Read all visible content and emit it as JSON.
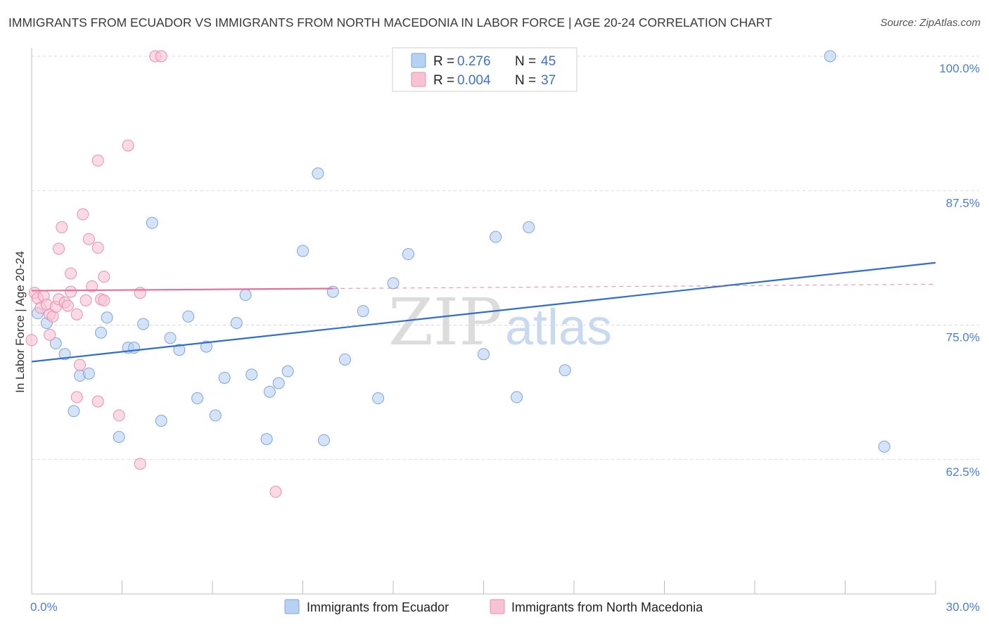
{
  "title": "IMMIGRANTS FROM ECUADOR VS IMMIGRANTS FROM NORTH MACEDONIA IN LABOR FORCE | AGE 20-24 CORRELATION CHART",
  "source": "Source: ZipAtlas.com",
  "watermark": {
    "zip": "ZIP",
    "atlas": "atlas"
  },
  "legend": {
    "rows": [
      {
        "r_label": "R =",
        "r_value": "0.276",
        "n_label": "N =",
        "n_value": "45"
      },
      {
        "r_label": "R =",
        "r_value": "0.004",
        "n_label": "N =",
        "n_value": "37"
      }
    ]
  },
  "bottom_legend": [
    "Immigrants from Ecuador",
    "Immigrants from North Macedonia"
  ],
  "colors": {
    "blue_fill": "#b7d1f2",
    "blue_stroke": "#7aa6e0",
    "blue_line": "#2f6ecb",
    "pink_fill": "#f7c3d3",
    "pink_stroke": "#e98fad",
    "pink_line": "#e0709a",
    "axis_text": "#4a7fd1",
    "grid": "#d8d8d8"
  },
  "chart_data": {
    "type": "scatter",
    "xlabel": "",
    "ylabel": "In Labor Force | Age 20-24",
    "xlim": [
      0,
      30
    ],
    "ylim": [
      50,
      100
    ],
    "x_tick_labels": [
      "0.0%",
      "30.0%"
    ],
    "y_ticks": [
      62.5,
      75.0,
      87.5,
      100.0
    ],
    "y_tick_labels": [
      "62.5%",
      "75.0%",
      "87.5%",
      "100.0%"
    ],
    "grid": true,
    "series": [
      {
        "name": "Immigrants from Ecuador",
        "color": "blue",
        "r": 0.276,
        "n": 45,
        "trend": {
          "x": [
            0,
            30
          ],
          "y": [
            71.6,
            80.8
          ],
          "dashed_from": null
        },
        "points": [
          [
            0.2,
            76.1
          ],
          [
            0.5,
            75.2
          ],
          [
            0.8,
            73.3
          ],
          [
            1.1,
            72.3
          ],
          [
            1.4,
            67.0
          ],
          [
            1.6,
            70.3
          ],
          [
            1.9,
            70.5
          ],
          [
            2.3,
            74.3
          ],
          [
            2.5,
            75.7
          ],
          [
            2.9,
            64.6
          ],
          [
            3.2,
            72.9
          ],
          [
            3.4,
            72.9
          ],
          [
            3.7,
            75.1
          ],
          [
            4.0,
            84.5
          ],
          [
            4.3,
            66.1
          ],
          [
            4.6,
            73.8
          ],
          [
            4.9,
            72.7
          ],
          [
            5.2,
            75.8
          ],
          [
            5.5,
            68.2
          ],
          [
            5.8,
            73.0
          ],
          [
            6.1,
            66.6
          ],
          [
            6.4,
            70.1
          ],
          [
            6.8,
            75.2
          ],
          [
            7.1,
            77.8
          ],
          [
            7.3,
            70.4
          ],
          [
            7.8,
            64.4
          ],
          [
            7.9,
            68.8
          ],
          [
            8.2,
            69.6
          ],
          [
            8.5,
            70.7
          ],
          [
            9.0,
            81.9
          ],
          [
            9.5,
            89.1
          ],
          [
            9.7,
            64.3
          ],
          [
            10.0,
            78.1
          ],
          [
            10.4,
            71.8
          ],
          [
            11.0,
            76.3
          ],
          [
            11.5,
            68.2
          ],
          [
            12.0,
            78.9
          ],
          [
            12.5,
            81.6
          ],
          [
            15.0,
            72.3
          ],
          [
            15.4,
            83.2
          ],
          [
            16.1,
            68.3
          ],
          [
            16.5,
            84.1
          ],
          [
            17.7,
            70.8
          ],
          [
            26.5,
            100.0
          ],
          [
            28.3,
            63.7
          ]
        ]
      },
      {
        "name": "Immigrants from North Macedonia",
        "color": "pink",
        "r": 0.004,
        "n": 37,
        "trend": {
          "x": [
            0,
            10.0,
            30
          ],
          "y": [
            78.2,
            78.4,
            78.8
          ],
          "dashed_from": 10.0
        },
        "points": [
          [
            0.0,
            73.6
          ],
          [
            0.1,
            78.0
          ],
          [
            0.2,
            77.5
          ],
          [
            0.3,
            76.6
          ],
          [
            0.4,
            77.7
          ],
          [
            0.5,
            76.9
          ],
          [
            0.6,
            76.0
          ],
          [
            0.6,
            74.1
          ],
          [
            0.7,
            75.8
          ],
          [
            0.8,
            76.7
          ],
          [
            0.9,
            77.4
          ],
          [
            0.9,
            82.1
          ],
          [
            1.0,
            84.1
          ],
          [
            1.1,
            77.1
          ],
          [
            1.2,
            76.8
          ],
          [
            1.3,
            79.8
          ],
          [
            1.3,
            78.1
          ],
          [
            1.5,
            76.0
          ],
          [
            1.5,
            68.3
          ],
          [
            1.6,
            71.3
          ],
          [
            1.7,
            85.3
          ],
          [
            1.8,
            77.3
          ],
          [
            1.9,
            83.0
          ],
          [
            2.0,
            78.6
          ],
          [
            2.2,
            67.9
          ],
          [
            2.3,
            77.4
          ],
          [
            2.4,
            77.3
          ],
          [
            2.2,
            82.2
          ],
          [
            2.2,
            90.3
          ],
          [
            2.4,
            79.5
          ],
          [
            2.9,
            66.6
          ],
          [
            3.2,
            91.7
          ],
          [
            3.6,
            62.1
          ],
          [
            3.6,
            78.0
          ],
          [
            4.1,
            100.0
          ],
          [
            4.3,
            100.0
          ],
          [
            8.1,
            59.5
          ]
        ]
      }
    ]
  }
}
